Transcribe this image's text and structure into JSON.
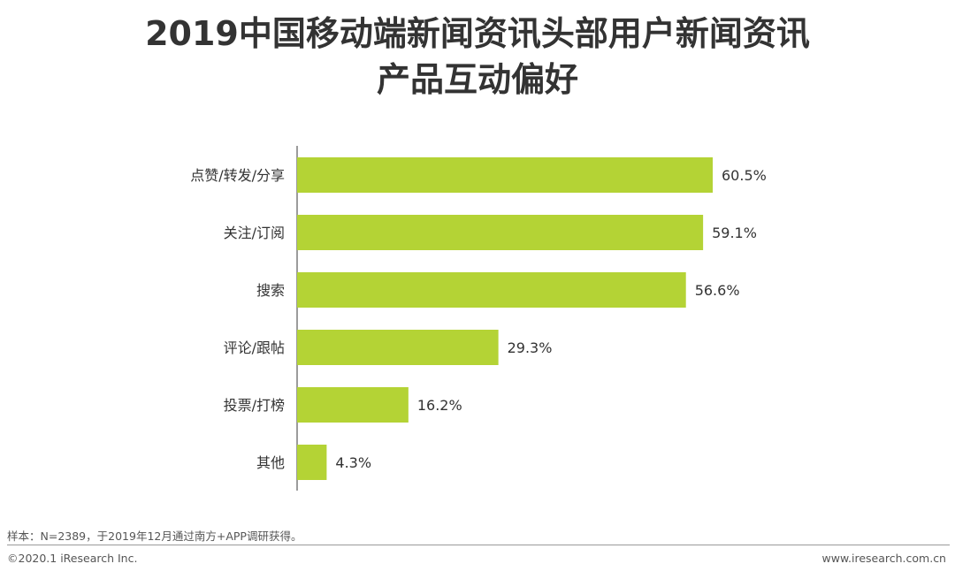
{
  "title": {
    "line1": "2019中国移动端新闻资讯头部用户新闻资讯",
    "line2": "产品互动偏好"
  },
  "chart_data": {
    "type": "bar",
    "orientation": "horizontal",
    "categories": [
      "点赞/转发/分享",
      "关注/订阅",
      "搜索",
      "评论/跟帖",
      "投票/打榜",
      "其他"
    ],
    "values": [
      60.5,
      59.1,
      56.6,
      29.3,
      16.2,
      4.3
    ],
    "value_labels": [
      "60.5%",
      "59.1%",
      "56.6%",
      "29.3%",
      "16.2%",
      "4.3%"
    ],
    "xlim": [
      0,
      100
    ],
    "grid": false,
    "legend": "none",
    "bar_color": "#b4d335"
  },
  "note": "样本：N=2389，于2019年12月通过南方+APP调研获得。",
  "footer": {
    "copyright": "©2020.1 iResearch Inc.",
    "website": "www.iresearch.com.cn"
  }
}
